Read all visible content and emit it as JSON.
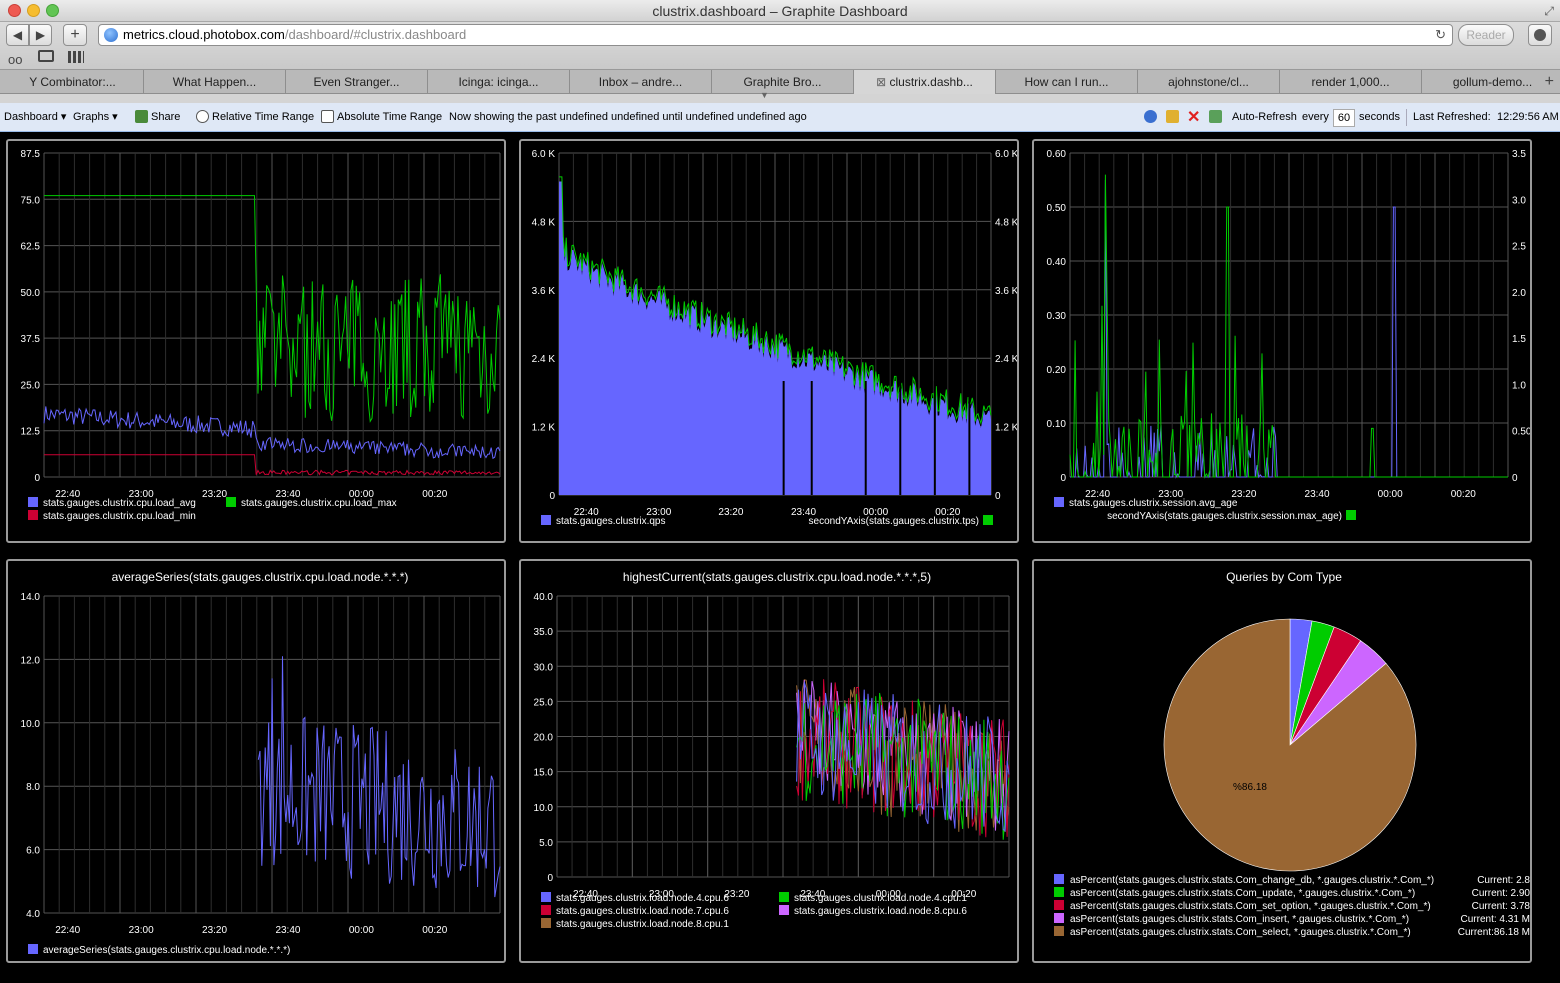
{
  "window": {
    "title": "clustrix.dashboard – Graphite Dashboard"
  },
  "browser": {
    "url_host": "metrics.cloud.photobox.com",
    "url_path": "/dashboard/#clustrix.dashboard",
    "reader_label": "Reader",
    "tabs": [
      {
        "label": "Y Combinator:..."
      },
      {
        "label": "What Happen..."
      },
      {
        "label": "Even Stranger..."
      },
      {
        "label": "Icinga: icinga..."
      },
      {
        "label": "Inbox – andre..."
      },
      {
        "label": "Graphite Bro..."
      },
      {
        "label": "clustrix.dashb...",
        "active": true
      },
      {
        "label": "How can I run..."
      },
      {
        "label": "ajohnstone/cl..."
      },
      {
        "label": "render 1,000..."
      },
      {
        "label": "gollum-demo..."
      }
    ]
  },
  "dashbar": {
    "dashboard_menu": "Dashboard",
    "graphs_menu": "Graphs",
    "share": "Share",
    "relative": "Relative Time Range",
    "absolute": "Absolute Time Range",
    "status": "Now showing the past undefined undefined until undefined undefined ago",
    "auto_refresh": "Auto-Refresh",
    "every": "every",
    "interval": "60",
    "seconds": "seconds",
    "last_refreshed": "Last Refreshed:",
    "last_time": "12:29:56 AM"
  },
  "colors": {
    "blue": "#6666ff",
    "green": "#00cc00",
    "red": "#cc0033",
    "purple": "#cc66ff",
    "brown": "#996633",
    "grid": "#555555"
  },
  "xticks": [
    "22:40",
    "23:00",
    "23:20",
    "23:40",
    "00:00",
    "00:20"
  ],
  "chart_data": [
    {
      "id": "p1",
      "type": "line",
      "title": "",
      "yticks": [
        "87.5",
        "75.0",
        "62.5",
        "50.0",
        "37.5",
        "25.0",
        "12.5",
        "0"
      ],
      "ylim": [
        0,
        87.5
      ],
      "series": [
        {
          "name": "stats.gauges.clustrix.cpu.load_avg",
          "color": "#6666ff",
          "approx": "about 17 falling to about 7"
        },
        {
          "name": "stats.gauges.clustrix.cpu.load_max",
          "color": "#00cc00",
          "approx": "76 until about 23:28 then 10 to 55"
        },
        {
          "name": "stats.gauges.clustrix.cpu.load_min",
          "color": "#cc0033",
          "approx": "6 then about 1"
        }
      ],
      "legend": [
        {
          "name": "stats.gauges.clustrix.cpu.load_avg",
          "color": "#6666ff"
        },
        {
          "name": "stats.gauges.clustrix.cpu.load_max",
          "color": "#00cc00"
        },
        {
          "name": "stats.gauges.clustrix.cpu.load_min",
          "color": "#cc0033"
        }
      ]
    },
    {
      "id": "p2",
      "type": "area",
      "title": "",
      "yticks": [
        "6.0 K",
        "4.8 K",
        "3.6 K",
        "2.4 K",
        "1.2 K",
        "0"
      ],
      "ylim": [
        0,
        6000
      ],
      "y2ticks": [
        "6.0 K",
        "4.8 K",
        "3.6 K",
        "2.4 K",
        "1.2 K",
        "0"
      ],
      "series": [
        {
          "name": "stats.gauges.clustrix.qps",
          "color": "#6666ff",
          "approx": "about 4300 falling to about 1200"
        },
        {
          "name": "secondYAxis(stats.gauges.clustrix.tps)",
          "color": "#00cc00"
        }
      ],
      "legend": [
        {
          "name": "stats.gauges.clustrix.qps",
          "color": "#6666ff"
        },
        {
          "name": "secondYAxis(stats.gauges.clustrix.tps)",
          "color": "#00cc00"
        }
      ]
    },
    {
      "id": "p3",
      "type": "line",
      "title": "",
      "yticks": [
        "0.60",
        "0.50",
        "0.40",
        "0.30",
        "0.20",
        "0.10",
        "0"
      ],
      "ylim": [
        0,
        0.6
      ],
      "y2ticks": [
        "3.5",
        "3.0",
        "2.5",
        "2.0",
        "1.5",
        "1.0",
        "0.50",
        "0"
      ],
      "y2lim": [
        0,
        3.5
      ],
      "series": [
        {
          "name": "stats.gauges.clustrix.session.avg_age",
          "color": "#6666ff"
        },
        {
          "name": "secondYAxis(stats.gauges.clustrix.session.max_age)",
          "color": "#00cc00"
        }
      ],
      "legend": [
        {
          "name": "stats.gauges.clustrix.session.avg_age",
          "color": "#6666ff"
        },
        {
          "name": "secondYAxis(stats.gauges.clustrix.session.max_age)",
          "color": "#00cc00"
        }
      ]
    },
    {
      "id": "p4",
      "type": "line",
      "title": "averageSeries(stats.gauges.clustrix.cpu.load.node.*.*.*)",
      "yticks": [
        "14.0",
        "12.0",
        "10.0",
        "8.0",
        "6.0",
        "4.0"
      ],
      "ylim": [
        4,
        14
      ],
      "series": [
        {
          "name": "averageSeries(stats.gauges.clustrix.cpu.load.node.*.*.*)",
          "color": "#6666ff",
          "approx": "data from about 23:28, between 4.5 and 12"
        }
      ],
      "legend": [
        {
          "name": "averageSeries(stats.gauges.clustrix.cpu.load.node.*.*.*)",
          "color": "#6666ff"
        }
      ]
    },
    {
      "id": "p5",
      "type": "line",
      "title": "highestCurrent(stats.gauges.clustrix.cpu.load.node.*.*.*,5)",
      "yticks": [
        "40.0",
        "35.0",
        "30.0",
        "25.0",
        "20.0",
        "15.0",
        "10.0",
        "5.0",
        "0"
      ],
      "ylim": [
        0,
        40
      ],
      "series": [
        {
          "name": "stats.gauges.clustrix.load.node.4.cpu.6",
          "color": "#6666ff"
        },
        {
          "name": "stats.gauges.clustrix.load.node.4.cpu.1",
          "color": "#00cc00"
        },
        {
          "name": "stats.gauges.clustrix.load.node.7.cpu.6",
          "color": "#cc0033"
        },
        {
          "name": "stats.gauges.clustrix.load.node.8.cpu.6",
          "color": "#cc66ff"
        },
        {
          "name": "stats.gauges.clustrix.load.node.8.cpu.1",
          "color": "#996633"
        }
      ],
      "legend": [
        {
          "name": "stats.gauges.clustrix.load.node.4.cpu.6",
          "color": "#6666ff"
        },
        {
          "name": "stats.gauges.clustrix.load.node.4.cpu.1",
          "color": "#00cc00"
        },
        {
          "name": "stats.gauges.clustrix.load.node.7.cpu.6",
          "color": "#cc0033"
        },
        {
          "name": "stats.gauges.clustrix.load.node.8.cpu.6",
          "color": "#cc66ff"
        },
        {
          "name": "stats.gauges.clustrix.load.node.8.cpu.1",
          "color": "#996633"
        }
      ]
    },
    {
      "id": "p6",
      "type": "pie",
      "title": "Queries by Com Type",
      "slice_label": "%86.18",
      "slices": [
        {
          "name": "asPercent(stats.gauges.clustrix.stats.Com_change_db, *.gauges.clustrix.*.Com_*)",
          "value": 2.8,
          "current": "Current: 2.8",
          "color": "#6666ff"
        },
        {
          "name": "asPercent(stats.gauges.clustrix.stats.Com_update, *.gauges.clustrix.*.Com_*)",
          "value": 2.9,
          "current": "Current: 2.90",
          "color": "#00cc00"
        },
        {
          "name": "asPercent(stats.gauges.clustrix.stats.Com_set_option, *.gauges.clustrix.*.Com_*)",
          "value": 3.78,
          "current": "Current: 3.78",
          "color": "#cc0033"
        },
        {
          "name": "asPercent(stats.gauges.clustrix.stats.Com_insert, *.gauges.clustrix.*.Com_*)",
          "value": 4.31,
          "current": "Current: 4.31 M",
          "color": "#cc66ff"
        },
        {
          "name": "asPercent(stats.gauges.clustrix.stats.Com_select, *.gauges.clustrix.*.Com_*)",
          "value": 86.18,
          "current": "Current:86.18 M",
          "color": "#996633"
        }
      ]
    }
  ]
}
